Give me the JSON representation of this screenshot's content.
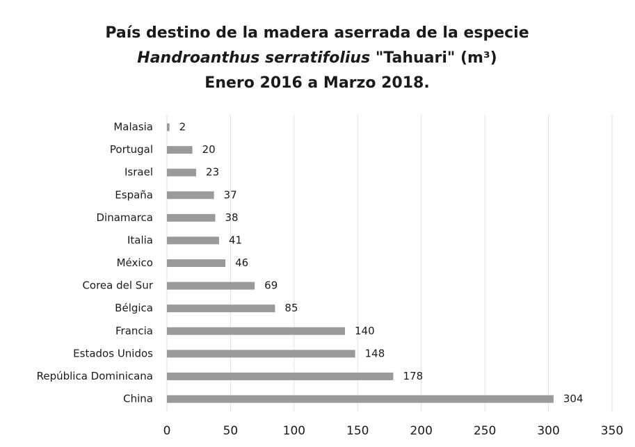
{
  "chart_data": {
    "type": "barh",
    "title": {
      "line1": "País destino de la madera aserrada de la especie",
      "species": "Handroanthus serratifolius",
      "common_name": " \"Tahuari\" (m³)",
      "line3": "Enero 2016 a Marzo 2018."
    },
    "categories": [
      "Malasia",
      "Portugal",
      "Israel",
      "España",
      "Dinamarca",
      "Italia",
      "México",
      "Corea del Sur",
      "Bélgica",
      "Francia",
      "Estados Unidos",
      "República Dominicana",
      "China"
    ],
    "values": [
      2,
      20,
      23,
      37,
      38,
      41,
      46,
      69,
      85,
      140,
      148,
      178,
      304
    ],
    "color": "#9a9a9a",
    "xlim": [
      0,
      350
    ],
    "xticks": [
      0,
      50,
      100,
      150,
      200,
      250,
      300,
      350
    ],
    "grid": true
  }
}
